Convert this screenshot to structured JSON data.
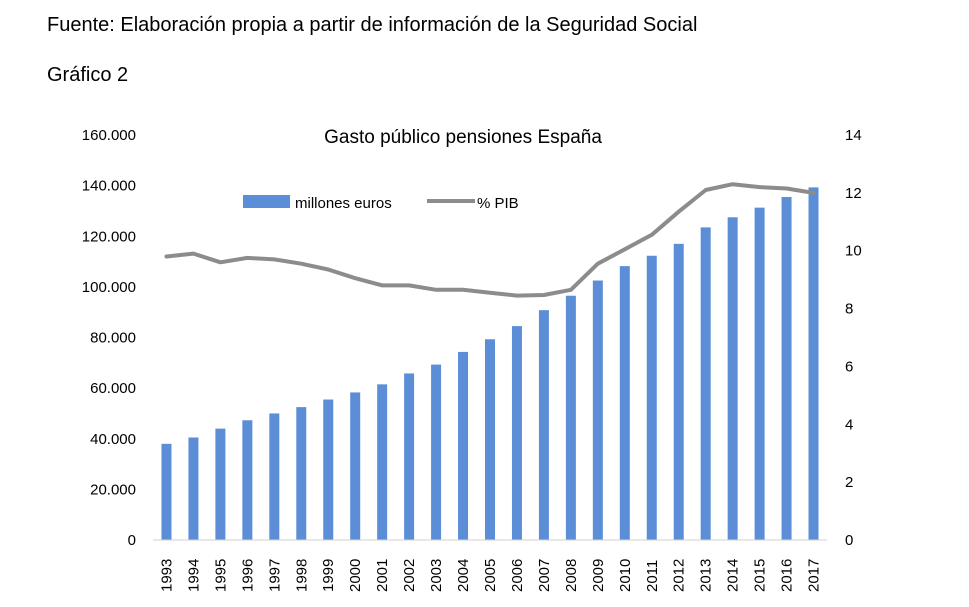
{
  "source_text": "Fuente: Elaboración propia a partir de información de la Seguridad Social",
  "figure_label": "Gráfico 2",
  "colors": {
    "bars": "#5b8ed6",
    "line": "#8c8c8c"
  },
  "chart_data": {
    "type": "bar",
    "title": "Gasto público pensiones España",
    "categories": [
      "1993",
      "1994",
      "1995",
      "1996",
      "1997",
      "1998",
      "1999",
      "2000",
      "2001",
      "2002",
      "2003",
      "2004",
      "2005",
      "2006",
      "2007",
      "2008",
      "2009",
      "2010",
      "2011",
      "2012",
      "2013",
      "2014",
      "2015",
      "2016",
      "2017"
    ],
    "series": [
      {
        "name": "millones euros",
        "type": "bar",
        "axis": "left",
        "values": [
          38000,
          40500,
          44000,
          47300,
          50000,
          52500,
          55500,
          58300,
          61500,
          65800,
          69300,
          74300,
          79300,
          84500,
          90800,
          96500,
          102500,
          108200,
          112300,
          117000,
          123500,
          127500,
          131300,
          135500,
          139300
        ]
      },
      {
        "name": "% PIB",
        "type": "line",
        "axis": "right",
        "values": [
          9.8,
          9.9,
          9.6,
          9.75,
          9.7,
          9.55,
          9.35,
          9.05,
          8.8,
          8.8,
          8.65,
          8.65,
          8.55,
          8.45,
          8.47,
          8.65,
          9.55,
          10.05,
          10.55,
          11.35,
          12.1,
          12.3,
          12.2,
          12.15,
          12.0
        ]
      }
    ],
    "y_left": {
      "ylim": [
        0,
        160000
      ],
      "ticks": [
        "0",
        "20.000",
        "40.000",
        "60.000",
        "80.000",
        "100.000",
        "120.000",
        "140.000",
        "160.000"
      ]
    },
    "y_right": {
      "ylim": [
        0,
        14
      ],
      "ticks": [
        "0",
        "2",
        "4",
        "6",
        "8",
        "10",
        "12",
        "14"
      ]
    },
    "grid": false,
    "legend_position": "top-left"
  }
}
